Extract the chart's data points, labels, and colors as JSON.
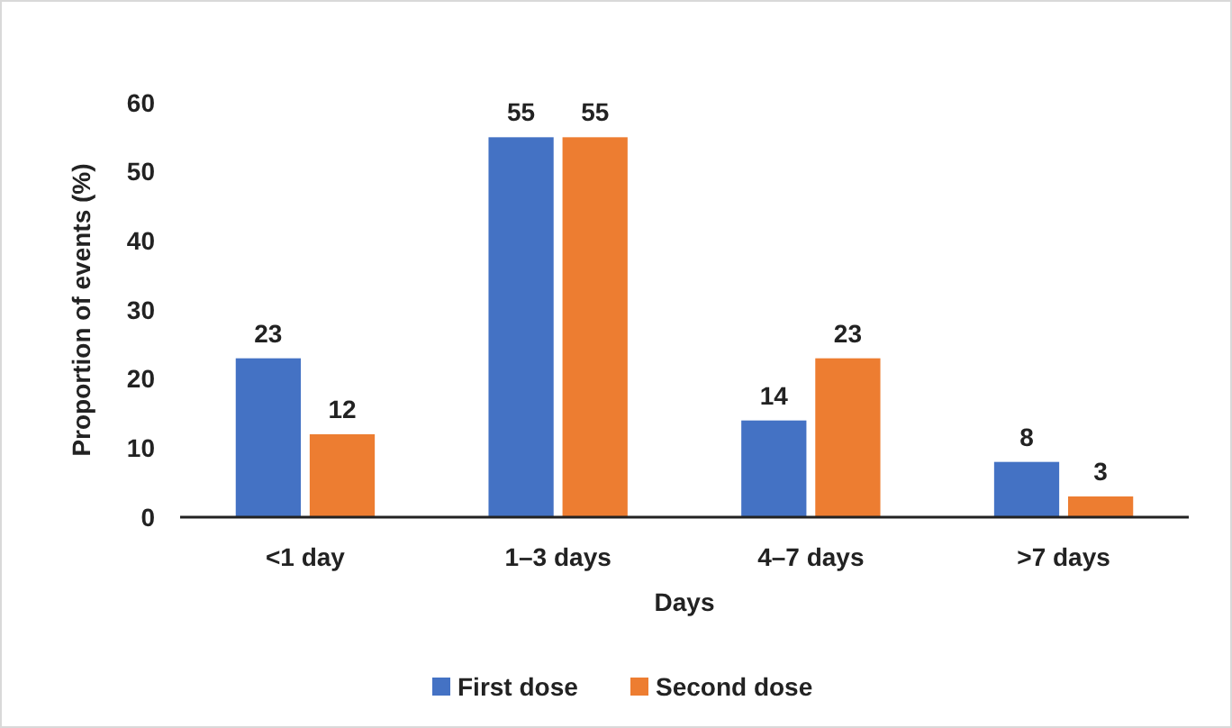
{
  "chart_data": {
    "type": "bar",
    "xlabel": "Days",
    "ylabel": "Proportion of events (%)",
    "categories": [
      "<1 day",
      "1–3 days",
      "4–7 days",
      ">7 days"
    ],
    "series": [
      {
        "name": "First dose",
        "color": "#4472c4",
        "values": [
          23,
          55,
          14,
          8
        ]
      },
      {
        "name": "Second dose",
        "color": "#ed7d31",
        "values": [
          12,
          55,
          23,
          3
        ]
      }
    ],
    "ylim": [
      0,
      60
    ],
    "yticks": [
      0,
      10,
      20,
      30,
      40,
      50,
      60
    ],
    "data_labels": true,
    "legend": "bottom",
    "grid": false
  }
}
